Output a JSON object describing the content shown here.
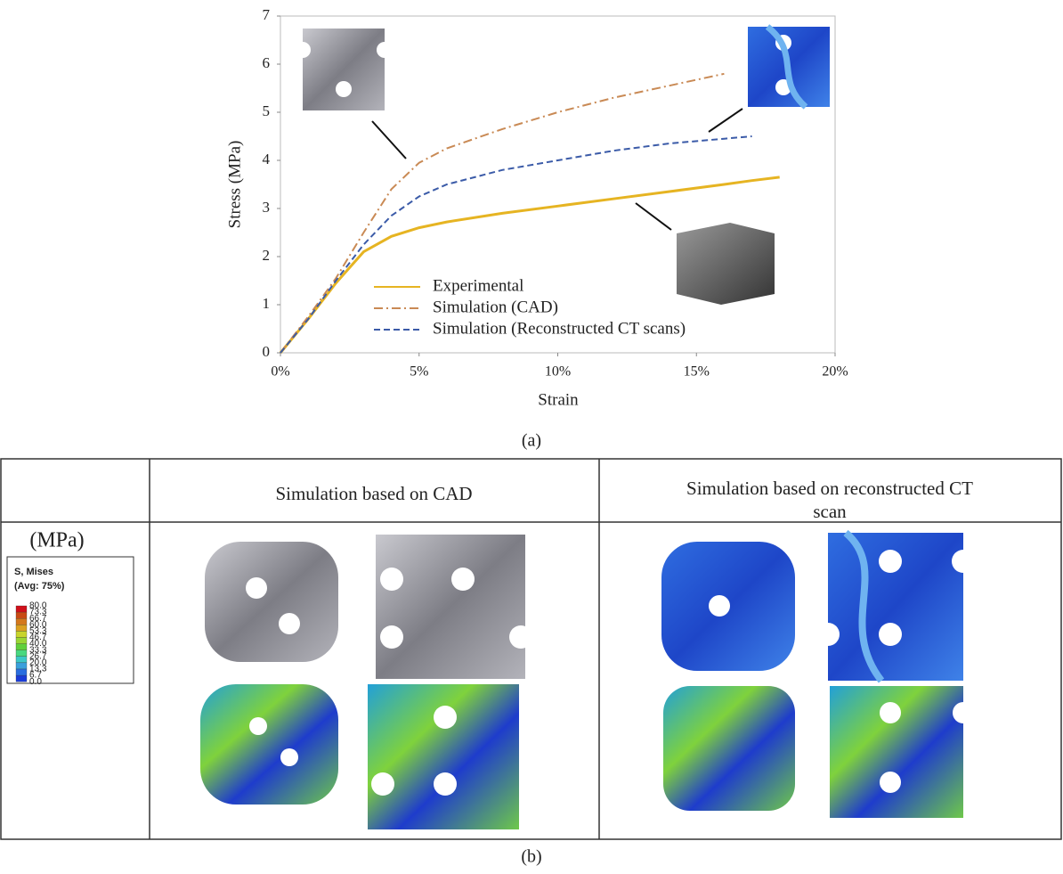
{
  "chart_data": {
    "type": "line",
    "xlabel": "Strain",
    "ylabel": "Stress (MPa)",
    "x": [
      0,
      1,
      2,
      3,
      4,
      5,
      6,
      8,
      10,
      12,
      14,
      16,
      17,
      18
    ],
    "series": [
      {
        "name": "Experimental",
        "color": "#e6b422",
        "dash": "solid",
        "values": [
          0,
          0.7,
          1.45,
          2.1,
          2.42,
          2.6,
          2.72,
          2.9,
          3.05,
          3.2,
          3.35,
          3.5,
          3.58,
          3.65
        ]
      },
      {
        "name": "Simulation (CAD)",
        "color": "#c98a55",
        "dash": "dashdot",
        "values": [
          0,
          0.75,
          1.55,
          2.5,
          3.4,
          3.95,
          4.25,
          4.65,
          5.0,
          5.3,
          5.55,
          5.8,
          null,
          null
        ]
      },
      {
        "name": "Simulation (Reconstructed CT scans)",
        "color": "#3b5ba8",
        "dash": "dashed",
        "values": [
          0,
          0.7,
          1.5,
          2.25,
          2.85,
          3.25,
          3.5,
          3.8,
          4.0,
          4.2,
          4.35,
          4.45,
          4.5,
          null
        ]
      }
    ],
    "xlim": [
      0,
      20
    ],
    "xticks": [
      {
        "value": 0,
        "label": "0%"
      },
      {
        "value": 5,
        "label": "5%"
      },
      {
        "value": 10,
        "label": "10%"
      },
      {
        "value": 15,
        "label": "15%"
      },
      {
        "value": 20,
        "label": "20%"
      }
    ],
    "ylim": [
      0,
      7
    ],
    "yticks": [
      0,
      1,
      2,
      3,
      4,
      5,
      6,
      7
    ],
    "legend": "lower center"
  },
  "panel_a_label": "(a)",
  "panel_b_label": "(b)",
  "table": {
    "headers": [
      "Simulation based on CAD",
      "Simulation based on reconstructed CT scan"
    ],
    "unit": "(MPa)",
    "legend_title": "S, Mises",
    "legend_subtitle": "(Avg: 75%)",
    "legend_levels": [
      "80.0",
      "73.3",
      "66.7",
      "60.0",
      "53.3",
      "46.7",
      "40.0",
      "33.3",
      "26.7",
      "20.0",
      "13.3",
      "6.7",
      "0.0"
    ]
  }
}
